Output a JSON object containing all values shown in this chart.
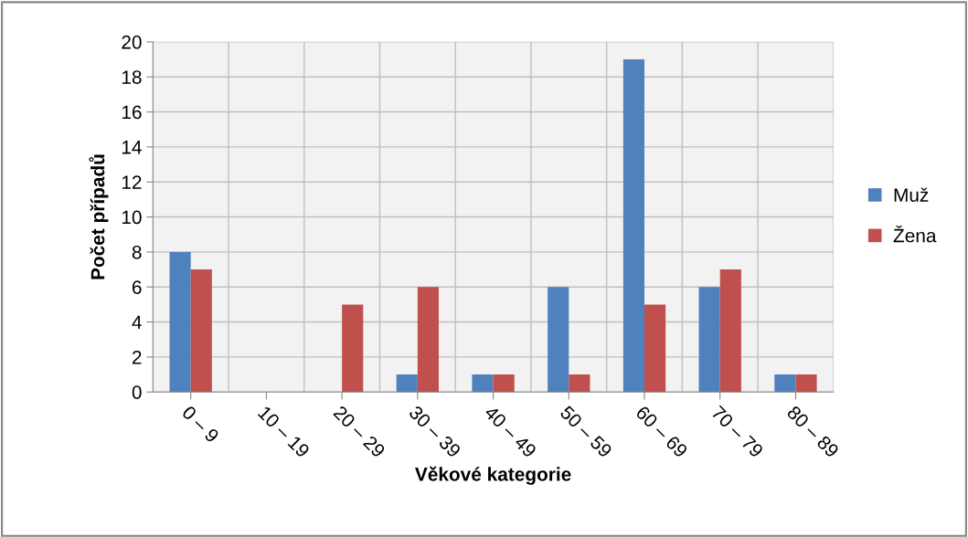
{
  "chart_data": {
    "type": "bar",
    "xlabel": "Věkové kategorie",
    "ylabel": "Počet případů",
    "categories": [
      "0 – 9",
      "10 – 19",
      "20 – 29",
      "30 – 39",
      "40 – 49",
      "50 – 59",
      "60 – 69",
      "70 – 79",
      "80 – 89"
    ],
    "series": [
      {
        "name": "Muž",
        "color": "#4f81bd",
        "values": [
          8,
          0,
          0,
          1,
          1,
          6,
          19,
          6,
          1
        ]
      },
      {
        "name": "Žena",
        "color": "#c0504d",
        "values": [
          7,
          0,
          5,
          6,
          1,
          1,
          5,
          7,
          1
        ]
      }
    ],
    "ylim": [
      0,
      20
    ],
    "yticks": [
      0,
      2,
      4,
      6,
      8,
      10,
      12,
      14,
      16,
      18,
      20
    ],
    "grid": true,
    "legend": "right"
  }
}
